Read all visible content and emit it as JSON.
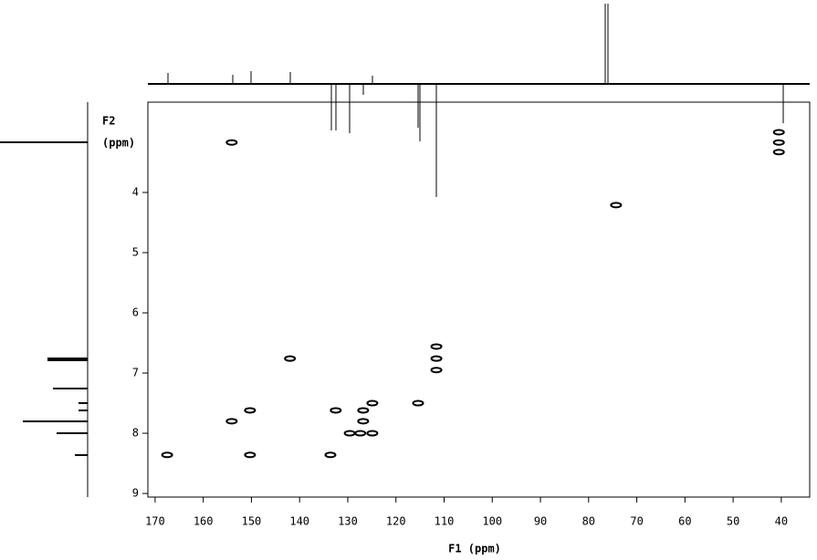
{
  "chart_data": {
    "type": "scatter",
    "x_label": "F1 (ppm)",
    "y_label_lines": [
      "F2",
      "(ppm)"
    ],
    "x": [
      154.1,
      40.5,
      40.5,
      40.5,
      74.3,
      142.0,
      111.6,
      111.6,
      111.6,
      150.3,
      154.1,
      132.5,
      124.9,
      115.4,
      126.8,
      126.8,
      129.6,
      127.4,
      124.9,
      167.5,
      150.3,
      133.6
    ],
    "y": [
      3.17,
      3.17,
      3.0,
      3.33,
      4.21,
      6.76,
      6.76,
      6.56,
      6.95,
      7.62,
      7.8,
      7.62,
      7.5,
      7.5,
      7.8,
      7.62,
      8.0,
      8.0,
      8.0,
      8.36,
      8.36,
      8.36
    ],
    "color": "#000000",
    "xlim": [
      171.5,
      34.1
    ],
    "ylim": [
      2.5,
      9.06
    ],
    "xticks": [
      170,
      160,
      150,
      140,
      130,
      120,
      110,
      100,
      90,
      80,
      70,
      60,
      50,
      40
    ],
    "yticks": [
      4,
      5,
      6,
      7,
      8,
      9
    ]
  }
}
